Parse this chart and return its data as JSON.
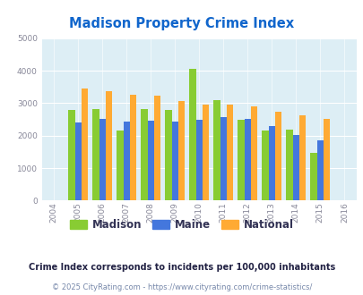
{
  "title": "Madison Property Crime Index",
  "years": [
    2005,
    2006,
    2007,
    2008,
    2009,
    2010,
    2011,
    2012,
    2013,
    2014,
    2015
  ],
  "madison": [
    2800,
    2820,
    2160,
    2820,
    2780,
    4050,
    3100,
    2500,
    2170,
    2200,
    1460
  ],
  "maine": [
    2420,
    2520,
    2430,
    2460,
    2430,
    2480,
    2560,
    2520,
    2300,
    2020,
    1870
  ],
  "national": [
    3460,
    3370,
    3270,
    3230,
    3060,
    2970,
    2960,
    2900,
    2740,
    2640,
    2510
  ],
  "madison_color": "#88cc33",
  "maine_color": "#4477dd",
  "national_color": "#ffaa33",
  "bg_color": "#ddeef5",
  "title_color": "#1166cc",
  "xlim": [
    2003.5,
    2016.5
  ],
  "ylim": [
    0,
    5000
  ],
  "yticks": [
    0,
    1000,
    2000,
    3000,
    4000,
    5000
  ],
  "bar_width": 0.27,
  "footnote1": "Crime Index corresponds to incidents per 100,000 inhabitants",
  "footnote2": "© 2025 CityRating.com - https://www.cityrating.com/crime-statistics/",
  "footnote1_color": "#222244",
  "footnote2_color": "#7788aa",
  "tick_color": "#888899",
  "legend_text_color": "#333355"
}
